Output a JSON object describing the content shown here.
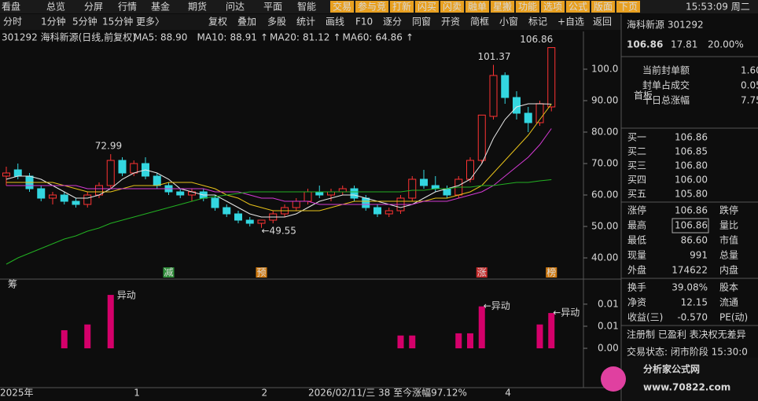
{
  "toolbar": {
    "menu": [
      "看盘",
      "总览",
      "分屏",
      "行情",
      "基金",
      "期货",
      "问达",
      "平面",
      "智能"
    ],
    "buttons": [
      "交易",
      "参与竞",
      "打新",
      "闪买",
      "闪卖",
      "融单",
      "星搬",
      "功能",
      "选项",
      "公式",
      "版面",
      "下页"
    ],
    "clock": "15:53:09 周二",
    "tools": [
      "分时",
      "1分钟",
      "5分钟",
      "15分钟",
      "更多〉",
      "复权",
      "叠加",
      "多股",
      "统计",
      "画线",
      "F10",
      "逐分",
      "同窗",
      "开资",
      "简框",
      "小窗",
      "标记",
      "+自选",
      "返回"
    ]
  },
  "chart_data": {
    "type": "candlestick",
    "title": "301292 海科新源(日线,前复权)",
    "categories": [
      "2025年",
      null,
      null,
      null,
      null,
      null,
      null,
      null,
      null,
      null,
      null,
      "1",
      null,
      null,
      null,
      null,
      null,
      null,
      null,
      null,
      null,
      null,
      "2",
      null,
      null,
      null,
      null,
      null,
      null,
      null,
      null,
      null,
      null,
      null,
      null,
      null,
      null,
      null,
      null,
      null,
      null,
      null,
      null,
      "4",
      null,
      null,
      null,
      null
    ],
    "ohlc": [
      [
        66,
        69,
        63,
        67
      ],
      [
        68,
        70,
        65,
        66
      ],
      [
        66,
        67,
        61,
        62
      ],
      [
        62,
        63,
        58,
        59
      ],
      [
        59,
        61,
        57,
        60
      ],
      [
        60,
        61,
        57,
        58
      ],
      [
        58,
        59,
        56,
        57
      ],
      [
        57,
        61,
        56,
        60
      ],
      [
        60,
        64,
        59,
        63
      ],
      [
        63,
        72.99,
        62,
        71
      ],
      [
        71,
        72,
        66,
        67
      ],
      [
        67,
        71,
        66,
        70
      ],
      [
        70,
        72,
        65,
        66
      ],
      [
        66,
        67,
        62,
        63
      ],
      [
        63,
        64,
        60,
        61
      ],
      [
        61,
        62,
        59,
        60
      ],
      [
        60,
        62,
        58,
        61
      ],
      [
        61,
        62,
        58,
        59
      ],
      [
        59,
        60,
        55,
        56
      ],
      [
        56,
        57,
        53,
        54
      ],
      [
        54,
        55,
        51,
        52
      ],
      [
        52,
        53,
        50,
        51
      ],
      [
        51,
        52,
        49.55,
        52
      ],
      [
        52,
        55,
        51,
        54
      ],
      [
        54,
        57,
        53,
        56
      ],
      [
        56,
        59,
        55,
        58
      ],
      [
        58,
        62,
        57,
        61
      ],
      [
        61,
        63,
        59,
        60
      ],
      [
        60,
        62,
        58,
        61
      ],
      [
        61,
        63,
        60,
        62
      ],
      [
        62,
        63,
        58,
        59
      ],
      [
        59,
        60,
        55,
        56
      ],
      [
        56,
        57,
        53,
        54
      ],
      [
        54,
        56,
        53,
        55
      ],
      [
        55,
        60,
        54,
        59
      ],
      [
        59,
        66,
        58,
        65
      ],
      [
        65,
        68,
        62,
        63
      ],
      [
        63,
        66,
        61,
        62
      ],
      [
        62,
        63,
        59,
        60
      ],
      [
        60,
        66,
        59,
        65
      ],
      [
        65,
        72,
        64,
        71
      ],
      [
        71,
        85.41,
        70,
        85.41
      ],
      [
        85,
        101.37,
        84,
        98
      ],
      [
        98,
        99,
        89,
        91
      ],
      [
        91,
        93,
        84,
        86
      ],
      [
        86,
        88,
        80,
        83
      ],
      [
        83,
        90,
        82,
        89.05
      ],
      [
        88,
        106.86,
        86.6,
        106.86
      ]
    ],
    "up_color": "#ff3333",
    "down_color": "#33d6e0",
    "series": [
      {
        "name": "MA5:",
        "current": "88.90",
        "trend": "",
        "color": "#e8e8e8",
        "values": [
          65,
          66,
          66,
          65,
          63,
          61,
          59,
          59,
          60,
          62,
          65,
          67,
          68,
          67,
          65,
          62,
          61,
          60,
          60,
          58,
          56,
          54,
          53,
          53,
          53,
          54,
          56,
          58,
          59,
          60,
          60,
          59,
          58,
          57,
          56,
          57,
          59,
          61,
          62,
          63,
          65,
          70,
          78,
          84,
          88,
          89,
          89,
          88.9
        ]
      },
      {
        "name": "MA10:",
        "current": "88.91",
        "trend": "↑",
        "color": "#e8c21a",
        "values": [
          64,
          64,
          64,
          64,
          64,
          63,
          62,
          61,
          61,
          61,
          62,
          63,
          63,
          63,
          64,
          64,
          64,
          63,
          62,
          60,
          59,
          57,
          56,
          55,
          55,
          55,
          55,
          55,
          56,
          57,
          58,
          58,
          58,
          58,
          58,
          58,
          58,
          59,
          59,
          60,
          61,
          63,
          67,
          71,
          75,
          79,
          84,
          88.91
        ]
      },
      {
        "name": "MA20:",
        "current": "81.12",
        "trend": "↑",
        "color": "#d43ad4",
        "values": [
          63,
          63,
          63,
          63,
          63,
          63,
          63,
          62,
          62,
          62,
          62,
          62,
          62,
          62,
          62,
          62,
          62,
          62,
          61,
          61,
          61,
          60,
          59,
          59,
          58,
          58,
          58,
          57,
          57,
          57,
          57,
          57,
          57,
          57,
          57,
          57,
          58,
          58,
          58,
          59,
          60,
          61,
          63,
          66,
          69,
          72,
          76,
          81.12
        ]
      },
      {
        "name": "MA60:",
        "current": "64.86",
        "trend": "↑",
        "color": "#22b022",
        "values": [
          38,
          40,
          41.5,
          43,
          44.5,
          46,
          47,
          48.5,
          49.5,
          51,
          52,
          53,
          54,
          55,
          56,
          57,
          58,
          59,
          59.5,
          60,
          60.5,
          61,
          61,
          61,
          61,
          61,
          61,
          61,
          61,
          61,
          61,
          61,
          61,
          61,
          61,
          61.5,
          61.5,
          62,
          62,
          62.5,
          62.5,
          63,
          63,
          63.5,
          64,
          64,
          64.5,
          64.86
        ]
      }
    ],
    "ylim": [
      37,
      110.75
    ],
    "yticks": [
      {
        "value": 40,
        "label": "40.00"
      },
      {
        "value": 50,
        "label": "50.00"
      },
      {
        "value": 60,
        "label": "60.00"
      },
      {
        "value": 70,
        "label": "70.00"
      },
      {
        "value": 80,
        "label": "80.00"
      },
      {
        "value": 90,
        "label": "90.00"
      },
      {
        "value": 100,
        "label": "100.0"
      }
    ],
    "annotations": [
      {
        "candle": 9,
        "value": 72.99,
        "text": "72.99"
      },
      {
        "candle": 22,
        "value": 49.55,
        "text": "←49.55"
      },
      {
        "candle": 42,
        "value": 101.37,
        "text": "101.37"
      },
      {
        "candle": 47,
        "value": 106.86,
        "text": "106.86"
      }
    ],
    "markers": [
      {
        "candle": 14,
        "text": "减",
        "color": "#2f8f3a"
      },
      {
        "candle": 22,
        "text": "预",
        "color": "#d07a10"
      },
      {
        "candle": 41,
        "text": "涨",
        "color": "#c42a2a"
      },
      {
        "candle": 47,
        "text": "榜",
        "color": "#d07a10"
      }
    ],
    "status": "2026/02/11/三 38 至今涨幅97.12%",
    "sub": {
      "label": "筹",
      "color": "#d4006a",
      "values": [
        null,
        null,
        null,
        null,
        null,
        0.0041,
        null,
        0.0054,
        null,
        0.0121,
        null,
        null,
        null,
        null,
        null,
        null,
        null,
        null,
        null,
        null,
        null,
        null,
        null,
        null,
        null,
        null,
        null,
        null,
        null,
        null,
        null,
        null,
        null,
        null,
        0.0029,
        0.0029,
        null,
        null,
        null,
        0.0034,
        0.0034,
        0.0095,
        null,
        null,
        null,
        null,
        0.0054,
        0.008
      ],
      "ylim": [
        0,
        0.013
      ],
      "yticks": [
        {
          "value": 0,
          "label": "0.00"
        },
        {
          "value": 0.005,
          "label": "0.01"
        },
        {
          "value": 0.01,
          "label": "0.01"
        }
      ],
      "signals": [
        {
          "candle": 9,
          "text": "异动"
        },
        {
          "candle": 41,
          "text": "←异动"
        },
        {
          "candle": 47,
          "text": "←异动"
        }
      ]
    }
  },
  "quote_panel": {
    "name": "海科新源 301292",
    "price": "106.86",
    "change": "17.81",
    "pct": "20.00%",
    "seal": [
      [
        "当前封单额",
        "1.60",
        "#e8c21a"
      ],
      [
        "封单占成交",
        "0.05",
        "#3a8ef0"
      ],
      [
        "十日总涨幅",
        "7.75",
        "#ff3333"
      ]
    ],
    "badge": "首板",
    "bids": [
      [
        "买一",
        "106.86"
      ],
      [
        "买二",
        "106.85"
      ],
      [
        "买三",
        "106.80"
      ],
      [
        "买四",
        "106.00"
      ],
      [
        "买五",
        "105.80"
      ]
    ],
    "stats": [
      [
        "涨停",
        "106.86",
        "跌停",
        "#ff3333"
      ],
      [
        "最高",
        "106.86",
        "量比",
        "#ff3333"
      ],
      [
        "最低",
        "86.60",
        "市值",
        "#33d6e0"
      ],
      [
        "现量",
        "991",
        "总量",
        "#e030e0"
      ],
      [
        "外盘",
        "174622",
        "内盘",
        "#ff3333"
      ]
    ],
    "stats2": [
      [
        "换手",
        "39.08%",
        "股本"
      ],
      [
        "净资",
        "12.15",
        "流通"
      ],
      [
        "收益(三)",
        "-0.570",
        "PE(动)"
      ]
    ],
    "notes": "注册制 已盈利 表决权无差异",
    "trade_state": "交易状态: 闭市阶段 15:30:0",
    "logo": "分析家公式网",
    "logo_url": "www.70822.com"
  }
}
